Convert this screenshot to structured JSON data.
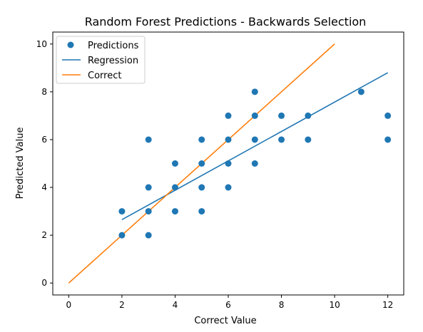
{
  "chart_data": {
    "type": "scatter",
    "title": "Random Forest Predictions - Backwards Selection",
    "xlabel": "Correct Value",
    "ylabel": "Predicted Value",
    "xlim": [
      -0.6,
      12.6
    ],
    "ylim": [
      -0.5,
      10.5
    ],
    "xticks": [
      0,
      2,
      4,
      6,
      8,
      10,
      12
    ],
    "yticks": [
      0,
      2,
      4,
      6,
      8,
      10
    ],
    "grid": false,
    "legend_position": "top-left",
    "series": [
      {
        "name": "Predictions",
        "kind": "scatter",
        "color": "#1f77b4",
        "points": [
          [
            2,
            2
          ],
          [
            2,
            3
          ],
          [
            3,
            2
          ],
          [
            3,
            3
          ],
          [
            3,
            4
          ],
          [
            3,
            6
          ],
          [
            4,
            3
          ],
          [
            4,
            4
          ],
          [
            4,
            5
          ],
          [
            5,
            3
          ],
          [
            5,
            4
          ],
          [
            5,
            5
          ],
          [
            5,
            6
          ],
          [
            6,
            4
          ],
          [
            6,
            5
          ],
          [
            6,
            6
          ],
          [
            6,
            7
          ],
          [
            7,
            5
          ],
          [
            7,
            6
          ],
          [
            7,
            7
          ],
          [
            7,
            8
          ],
          [
            8,
            6
          ],
          [
            8,
            7
          ],
          [
            9,
            6
          ],
          [
            9,
            7
          ],
          [
            11,
            8
          ],
          [
            12,
            6
          ],
          [
            12,
            7
          ]
        ]
      },
      {
        "name": "Regression",
        "kind": "line",
        "color": "#1f77b4",
        "x": [
          2,
          12
        ],
        "y": [
          2.65,
          8.8
        ]
      },
      {
        "name": "Correct",
        "kind": "line",
        "color": "#ff7f0e",
        "x": [
          0,
          10
        ],
        "y": [
          0,
          10
        ]
      }
    ]
  }
}
